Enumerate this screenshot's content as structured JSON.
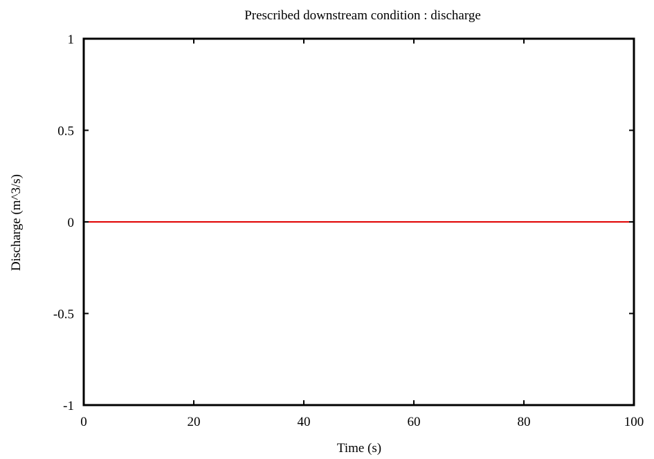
{
  "chart_data": {
    "type": "line",
    "title": "Prescribed downstream condition : discharge",
    "xlabel": "Time (s)",
    "ylabel": "Discharge (m^3/s)",
    "xlim": [
      0,
      100
    ],
    "ylim": [
      -1,
      1
    ],
    "x_ticks": [
      0,
      20,
      40,
      60,
      80,
      100
    ],
    "y_ticks": [
      -1,
      -0.5,
      0,
      0.5,
      1
    ],
    "x_tick_labels": [
      "0",
      "20",
      "40",
      "60",
      "80",
      "100"
    ],
    "y_tick_labels": [
      "-1",
      "-0.5",
      "0",
      "0.5",
      "1"
    ],
    "grid": false,
    "series": [
      {
        "color": "#e00000",
        "x": [
          0,
          100
        ],
        "y": [
          0,
          0
        ]
      }
    ]
  }
}
